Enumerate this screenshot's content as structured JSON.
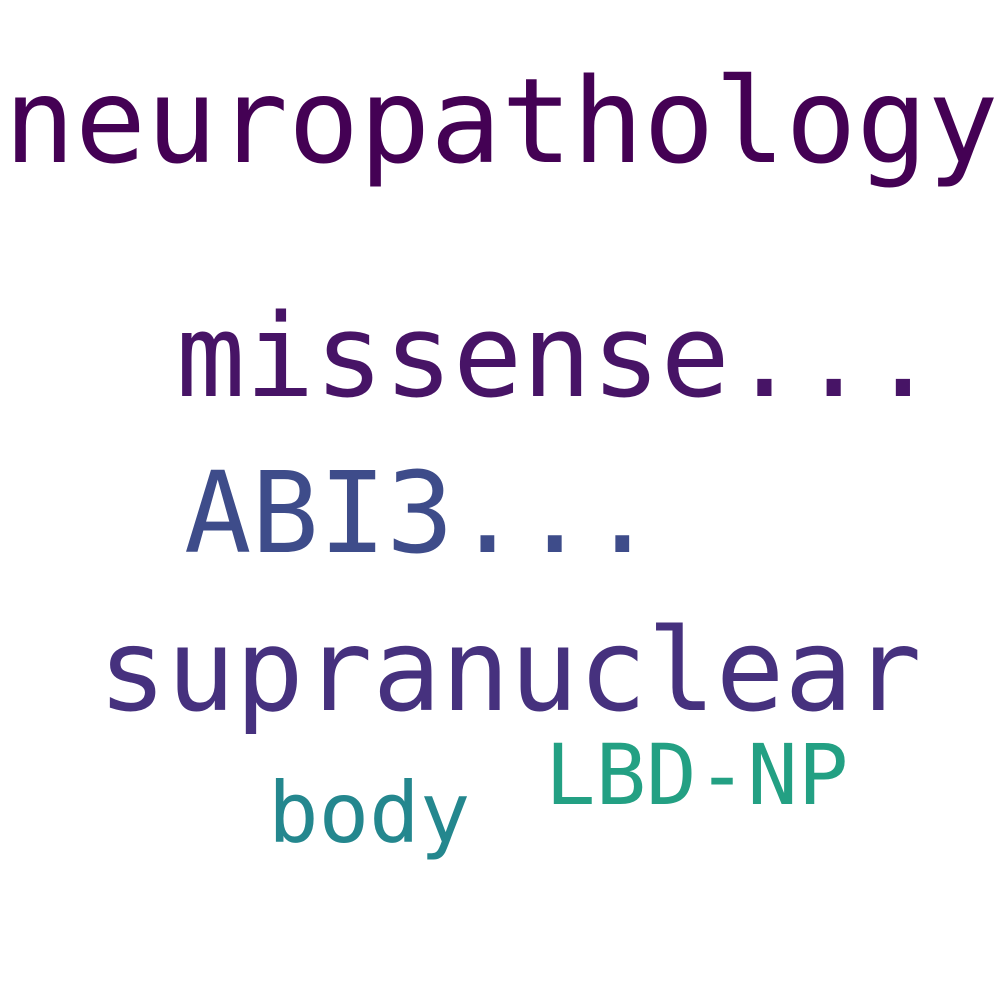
{
  "words": [
    {
      "text": "neuropathology",
      "color": "#440154"
    },
    {
      "text": "missense...",
      "color": "#471466"
    },
    {
      "text": "ABI3...",
      "color": "#3e4c8a"
    },
    {
      "text": "supranuclear",
      "color": "#46317e"
    },
    {
      "text": "LBD-NP",
      "color": "#23a083"
    },
    {
      "text": "body",
      "color": "#24878e"
    }
  ]
}
